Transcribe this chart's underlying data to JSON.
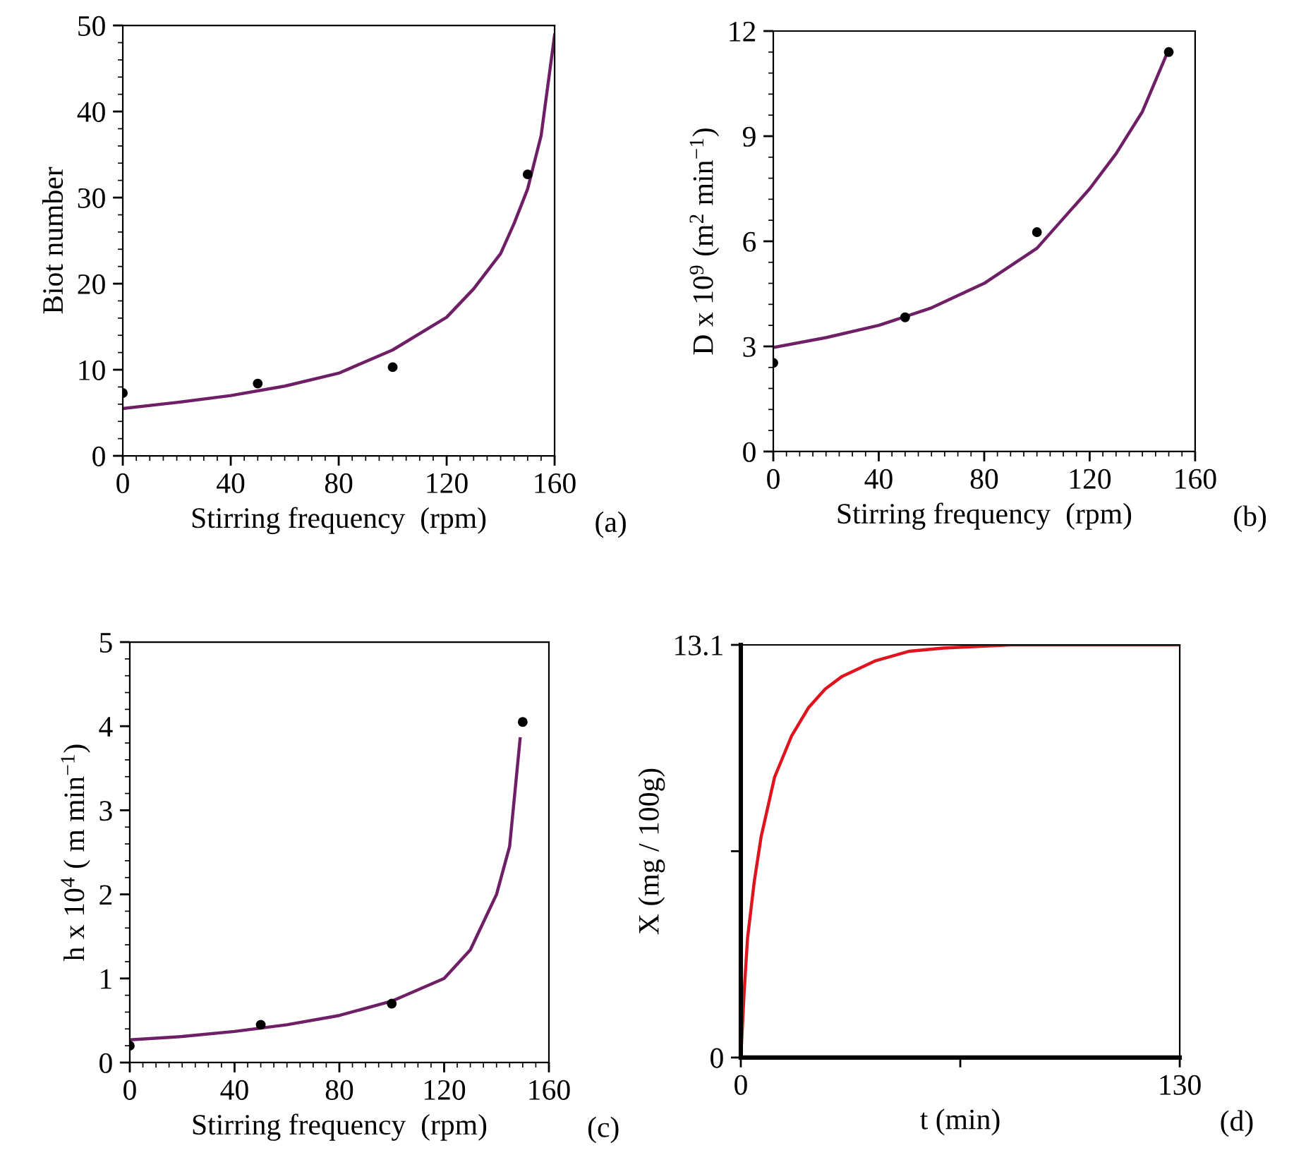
{
  "chart_data": [
    {
      "type": "line",
      "xlabel": "Stirring frequency  (rpm)",
      "ylabel": "Biot number",
      "xlim": [
        0,
        160
      ],
      "xticks": [
        0,
        40,
        80,
        120,
        160
      ],
      "ylim": [
        0,
        50
      ],
      "yticks": [
        0,
        10,
        20,
        30,
        40,
        50
      ],
      "grid": false,
      "legend": false,
      "annotations": [
        "(a)"
      ],
      "series": [
        {
          "type": "scatter",
          "color": "#000000",
          "marker": "circle",
          "x": [
            0,
            50,
            100,
            150
          ],
          "values": [
            7.3,
            8.4,
            10.3,
            32.7
          ]
        },
        {
          "color": "#6e1f66",
          "x": [
            0,
            20,
            40,
            60,
            80,
            100,
            120,
            130,
            140,
            145,
            150,
            155,
            160
          ],
          "values": [
            5.5,
            6.2,
            7.0,
            8.1,
            9.6,
            12.3,
            16.1,
            19.4,
            23.5,
            27,
            31,
            37.2,
            48.9
          ]
        }
      ]
    },
    {
      "type": "line",
      "xlabel": "Stirring frequency  (rpm)",
      "ylabel": "D x 10$^{9}$ (m$^{2}$ min$^{−1}$)",
      "xlim": [
        0,
        160
      ],
      "xticks": [
        0,
        40,
        80,
        120,
        160
      ],
      "ylim": [
        0,
        12
      ],
      "yticks": [
        0,
        3,
        6,
        9,
        12
      ],
      "grid": false,
      "legend": false,
      "annotations": [
        "(b)"
      ],
      "series": [
        {
          "type": "scatter",
          "color": "#000000",
          "marker": "circle",
          "x": [
            0,
            50,
            100,
            150
          ],
          "values": [
            2.53,
            3.83,
            6.26,
            11.4
          ]
        },
        {
          "color": "#6e1f66",
          "x": [
            0,
            20,
            40,
            60,
            80,
            100,
            120,
            130,
            140,
            149
          ],
          "values": [
            2.97,
            3.25,
            3.6,
            4.1,
            4.8,
            5.8,
            7.5,
            8.5,
            9.7,
            11.3
          ]
        }
      ]
    },
    {
      "type": "line",
      "xlabel": "Stirring frequency  (rpm)",
      "ylabel": "h x 10$^{4}$ ( m min$^{−1}$)",
      "xlim": [
        0,
        160
      ],
      "xticks": [
        0,
        40,
        80,
        120,
        160
      ],
      "ylim": [
        0,
        5
      ],
      "yticks": [
        0,
        1,
        2,
        3,
        4,
        5
      ],
      "grid": false,
      "legend": false,
      "annotations": [
        "(c)"
      ],
      "series": [
        {
          "type": "scatter",
          "color": "#000000",
          "marker": "circle",
          "x": [
            0,
            50,
            100,
            150
          ],
          "values": [
            0.2,
            0.45,
            0.7,
            4.05
          ]
        },
        {
          "color": "#6e1f66",
          "x": [
            0,
            20,
            40,
            60,
            80,
            100,
            120,
            130,
            140,
            145,
            149
          ],
          "values": [
            0.27,
            0.31,
            0.37,
            0.45,
            0.56,
            0.73,
            1.0,
            1.34,
            2.0,
            2.57,
            3.85
          ]
        }
      ]
    },
    {
      "type": "line",
      "xlabel": "t (min)",
      "ylabel": "X (mg / 100g)",
      "xlim": [
        0,
        130
      ],
      "xticks": [
        0,
        {
          "value": 65,
          "label": null
        },
        130
      ],
      "ylim": [
        0,
        13.1
      ],
      "yticks": [
        0,
        {
          "value": 6.55,
          "label": null
        },
        13.1
      ],
      "grid": false,
      "legend": false,
      "annotations": [
        "(d)"
      ],
      "series": [
        {
          "color": "#e0141e",
          "x": [
            0,
            1,
            2,
            4,
            6,
            10,
            15,
            20,
            25,
            30,
            40,
            50,
            60,
            80,
            130
          ],
          "values": [
            0,
            2.1,
            3.8,
            5.6,
            7.0,
            8.9,
            10.2,
            11.1,
            11.7,
            12.1,
            12.6,
            12.9,
            13.0,
            13.1,
            13.1
          ]
        }
      ]
    }
  ]
}
